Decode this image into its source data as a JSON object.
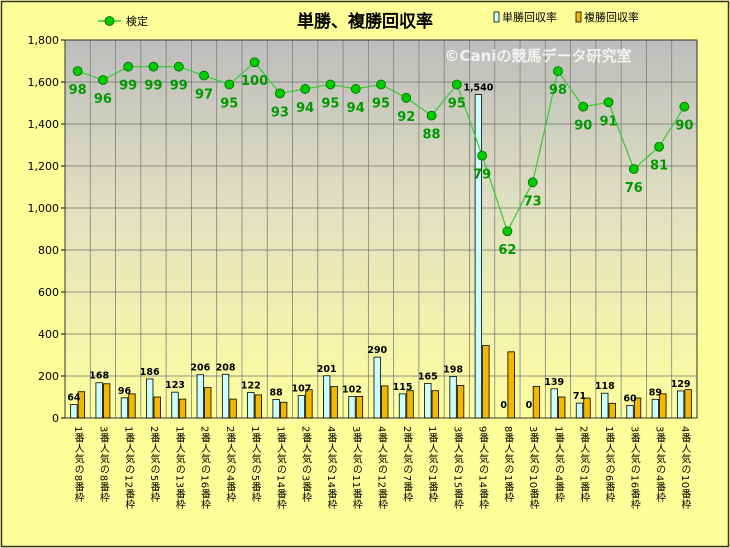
{
  "chart_data": {
    "type": "bar",
    "title": "単勝、複勝回収率",
    "watermark": "©Caniの競馬データ研究室",
    "categories": [
      "1番人気の8番枠",
      "3番人気の8番枠",
      "1番人気の12番枠",
      "2番人気の5番枠",
      "1番人気の13番枠",
      "2番人気の16番枠",
      "2番人気の4番枠",
      "1番人気の5番枠",
      "1番人気の14番枠",
      "2番人気の3番枠",
      "4番人気の14番枠",
      "3番人気の11番枠",
      "4番人気の12番枠",
      "2番人気の7番枠",
      "1番人気の1番枠",
      "3番人気の15番枠",
      "9番人気の14番枠",
      "8番人気の1番枠",
      "3番人気の10番枠",
      "1番人気の4番枠",
      "2番人気の1番枠",
      "1番人気の6番枠",
      "3番人気の16番枠",
      "3番人気の4番枠",
      "4番人気の10番枠"
    ],
    "series": [
      {
        "name": "単勝回収率",
        "color": "#CCFFFF",
        "values": [
          64,
          168,
          96,
          186,
          123,
          206,
          208,
          122,
          88,
          107,
          201,
          102,
          290,
          115,
          165,
          198,
          1540,
          0,
          0,
          139,
          71,
          118,
          60,
          89,
          129
        ],
        "labels": [
          "64",
          "168",
          "96",
          "186",
          "123",
          "206",
          "208",
          "122",
          "88",
          "107",
          "201",
          "102",
          "290",
          "115",
          "165",
          "198",
          "1,540",
          "0",
          "0",
          "139",
          "71",
          "118",
          "60",
          "89",
          "129"
        ]
      },
      {
        "name": "複勝回収率",
        "color": "#F2B800",
        "values": [
          125,
          163,
          115,
          100,
          90,
          145,
          90,
          110,
          75,
          135,
          150,
          103,
          153,
          130,
          130,
          155,
          345,
          315,
          150,
          100,
          95,
          70,
          95,
          115,
          135
        ]
      },
      {
        "name": "検定",
        "color": "#00CC00",
        "values": [
          98,
          96,
          99,
          99,
          99,
          97,
          95,
          100,
          93,
          94,
          95,
          94,
          95,
          92,
          88,
          95,
          79,
          62,
          73,
          98,
          90,
          91,
          76,
          81,
          90
        ]
      }
    ],
    "ylim": [
      0,
      1800
    ],
    "yticks": [
      "0",
      "200",
      "400",
      "600",
      "800",
      "1,000",
      "1,200",
      "1,400",
      "1,600",
      "1,800"
    ],
    "line_ylim": [
      20,
      105
    ],
    "grid": true,
    "legend_position": "top"
  }
}
